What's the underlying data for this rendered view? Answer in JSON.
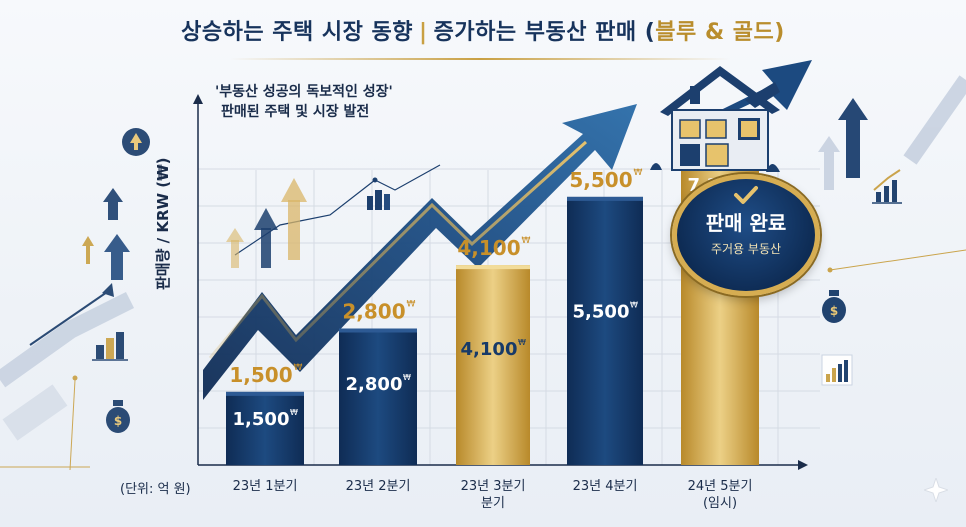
{
  "header": {
    "title_left": "상승하는 주택 시장 동향",
    "title_sep": "|",
    "title_right_main": "증가하는 부동산 판매 (",
    "title_right_gold": "블루",
    "title_right_tail": " & 골드)"
  },
  "subtitle": {
    "line1": "'부동산 성공의 독보적인 성장'",
    "line2": "판매된 주택 및 시장 발전"
  },
  "badge": {
    "main": "판매 완료",
    "sub": "주거용 부동산"
  },
  "unit_label": "(단위: 억 원)",
  "chart_data": {
    "type": "bar",
    "title": "상승하는 주택 시장 동향 | 증가하는 부동산 판매 (블루 & 골드)",
    "ylabel": "판매량 / KRW (₩)",
    "categories": [
      {
        "line1": "23년 1분기",
        "line2": ""
      },
      {
        "line1": "23년 2분기",
        "line2": ""
      },
      {
        "line1": "23년 3분기",
        "line2": "분기"
      },
      {
        "line1": "23년 4분기",
        "line2": ""
      },
      {
        "line1": "24년 5분기",
        "line2": "(임시)"
      }
    ],
    "values": [
      1500,
      2800,
      4100,
      5500,
      7200
    ],
    "value_labels": [
      "1,500",
      "2,800",
      "4,100",
      "5,500",
      "7,200"
    ],
    "currency_mark": "₩",
    "ylim": [
      0,
      8000
    ],
    "grid": true,
    "colors": {
      "navy": "#143766",
      "navy_light": "#245088",
      "gold": "#c99a35",
      "gold_light": "#e9c777",
      "label_gold": "#c8902a"
    }
  }
}
